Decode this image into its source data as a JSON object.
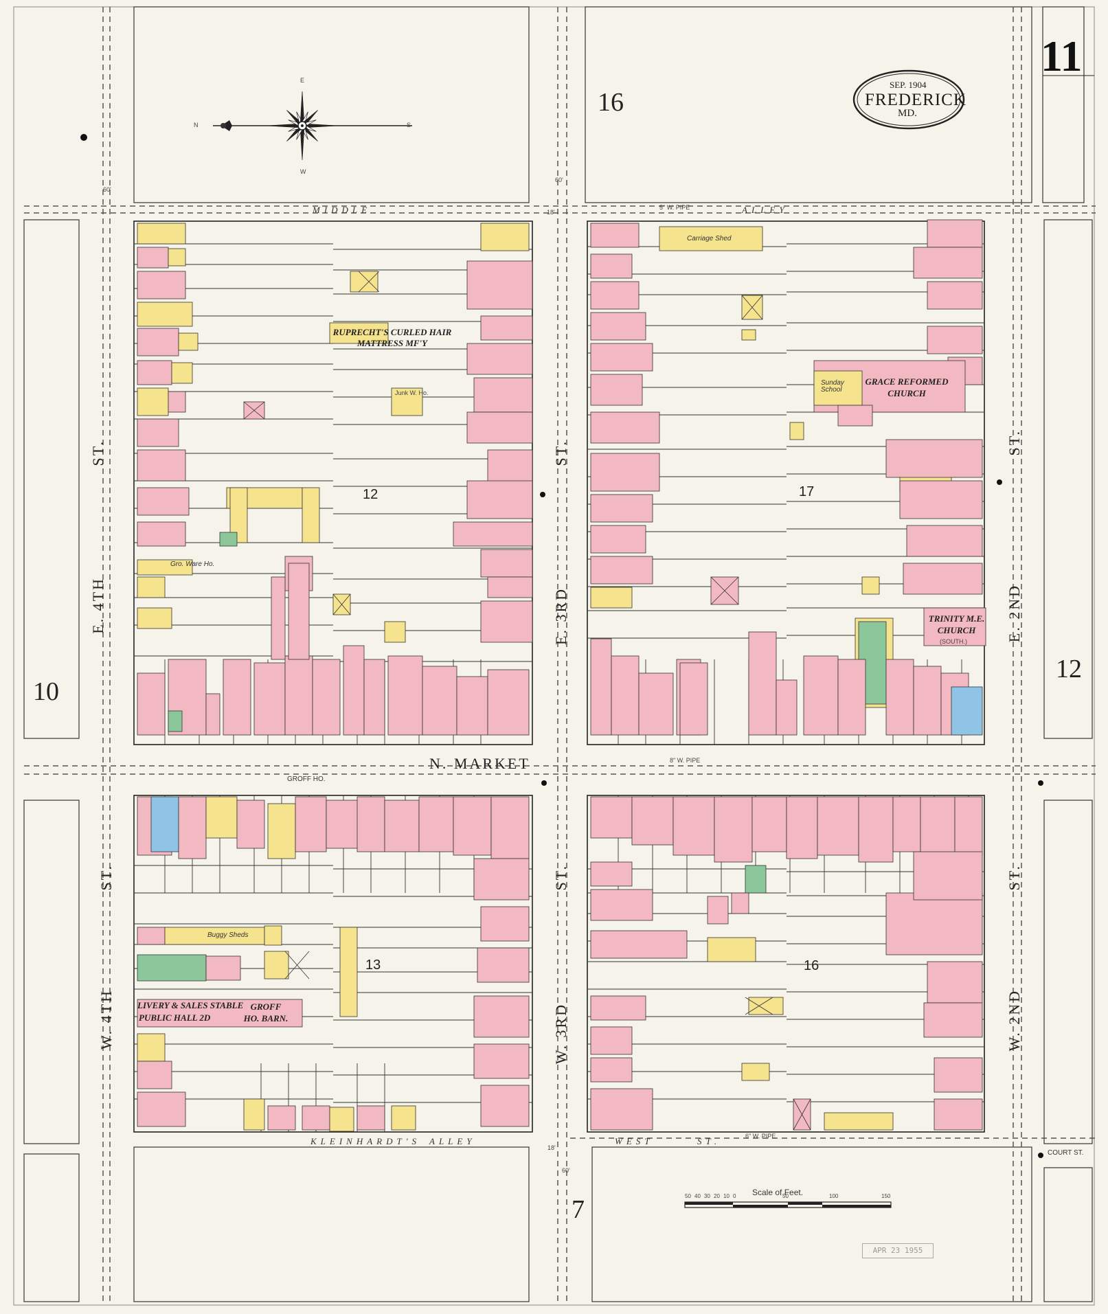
{
  "page_number": "11",
  "title_cartouche": {
    "date": "SEP. 1904",
    "city": "FREDERICK",
    "state": "MD."
  },
  "adjacent_sheets": {
    "top": "16",
    "left": "10",
    "right": "12",
    "bottom": "7"
  },
  "streets": {
    "middle_alley_left": "MIDDLE",
    "middle_alley_right": "ALLEY",
    "n_market": "N. MARKET",
    "e_4th": "E. 4TH",
    "st_1": "ST.",
    "w_4th": "W. 4TH",
    "st_2": "ST.",
    "e_3rd": "E. 3RD",
    "st_3": "ST.",
    "w_3rd": "W. 3RD",
    "st_4": "ST.",
    "e_2nd": "E. 2ND",
    "st_5": "ST.",
    "w_2nd": "W. 2ND",
    "st_6": "ST.",
    "kleinhardts": "KLEINHARDT'S",
    "kleinhardts_alley": "ALLEY",
    "west_st": "WEST",
    "west_st_suffix": "ST.",
    "court_st": "COURT ST."
  },
  "blocks": [
    "12",
    "17",
    "13",
    "16"
  ],
  "buildings": {
    "ruprecht": "RUPRECHT'S CURLED HAIR MATTRESS MF'Y",
    "grace": "GRACE REFORMED CHURCH",
    "sunday_school": "Sunday School",
    "trinity": "TRINITY M.E. CHURCH",
    "trinity_sub": "(SOUTH.)",
    "livery": "LIVERY & SALES STABLE",
    "public_hall": "PUBLIC HALL 2D",
    "groff_barn": "GROFF HO. BARN.",
    "groff_ho": "GROFF HO.",
    "buggy_sheds": "Buggy Sheds",
    "carriage_shed": "Carriage Shed",
    "gro_ware": "Gro. Ware Ho.",
    "junk": "Junk W. Ho."
  },
  "pipes": {
    "p1": "5\" W. PIPE",
    "p2": "8\" W. PIPE",
    "p3": "6\" W. PIPE"
  },
  "widths": {
    "w60": "60'",
    "w18": "18'"
  },
  "scale": {
    "label": "Scale of Feet.",
    "ticks": [
      "50",
      "40",
      "30",
      "20",
      "10",
      "0",
      "50",
      "100",
      "150"
    ]
  },
  "compass": {
    "n": "N",
    "s": "S",
    "e": "E",
    "w": "W"
  },
  "stamp": "APR 23 1955",
  "colors": {
    "brick": "#f2b9c2",
    "brick_edge": "#c9808d",
    "frame": "#f6e38e",
    "frame_edge": "#c3a43f",
    "stone": "#8fc4e6",
    "special": "#8cc79b",
    "paper": "#f6f4ea"
  }
}
